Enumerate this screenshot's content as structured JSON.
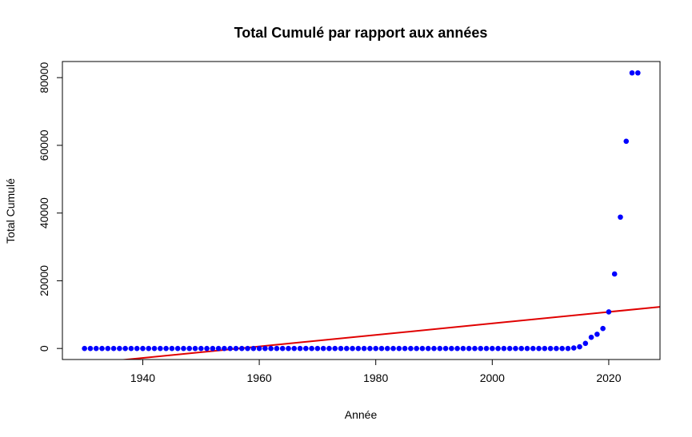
{
  "chart_data": {
    "type": "scatter",
    "title": "Total Cumulé par rapport aux années",
    "xlabel": "Année",
    "ylabel": "Total Cumulé",
    "xlim": [
      1926.2,
      2028.8
    ],
    "ylim": [
      -3260,
      84760
    ],
    "x_ticks": [
      1940,
      1960,
      1980,
      2000,
      2020
    ],
    "y_ticks": [
      0,
      20000,
      40000,
      60000,
      80000
    ],
    "grid": false,
    "legend": "none",
    "colors": {
      "points": "#0000ff",
      "regression": "#e00000"
    },
    "points": {
      "x": [
        1930,
        1931,
        1932,
        1933,
        1934,
        1935,
        1936,
        1937,
        1938,
        1939,
        1940,
        1941,
        1942,
        1943,
        1944,
        1945,
        1946,
        1947,
        1948,
        1949,
        1950,
        1951,
        1952,
        1953,
        1954,
        1955,
        1956,
        1957,
        1958,
        1959,
        1960,
        1961,
        1962,
        1963,
        1964,
        1965,
        1966,
        1967,
        1968,
        1969,
        1970,
        1971,
        1972,
        1973,
        1974,
        1975,
        1976,
        1977,
        1978,
        1979,
        1980,
        1981,
        1982,
        1983,
        1984,
        1985,
        1986,
        1987,
        1988,
        1989,
        1990,
        1991,
        1992,
        1993,
        1994,
        1995,
        1996,
        1997,
        1998,
        1999,
        2000,
        2001,
        2002,
        2003,
        2004,
        2005,
        2006,
        2007,
        2008,
        2009,
        2010,
        2011,
        2012,
        2013,
        2014,
        2015,
        2016,
        2017,
        2018,
        2019,
        2020,
        2021,
        2022,
        2023,
        2024,
        2025
      ],
      "y": [
        0,
        0,
        0,
        0,
        0,
        0,
        0,
        0,
        0,
        0,
        0,
        0,
        0,
        0,
        0,
        0,
        0,
        0,
        0,
        0,
        0,
        0,
        0,
        0,
        0,
        0,
        0,
        0,
        0,
        0,
        0,
        0,
        0,
        0,
        0,
        0,
        0,
        0,
        0,
        0,
        0,
        0,
        0,
        0,
        0,
        0,
        0,
        0,
        0,
        0,
        0,
        0,
        0,
        0,
        0,
        0,
        0,
        0,
        0,
        0,
        0,
        0,
        0,
        0,
        0,
        0,
        0,
        0,
        0,
        0,
        0,
        0,
        0,
        0,
        0,
        0,
        0,
        0,
        0,
        0,
        0,
        0,
        0,
        0,
        150,
        500,
        1500,
        3300,
        4200,
        5900,
        10800,
        22000,
        38800,
        61200,
        81400,
        81400
      ]
    },
    "regression_line": {
      "intercept": -332600,
      "slope": 170
    }
  }
}
